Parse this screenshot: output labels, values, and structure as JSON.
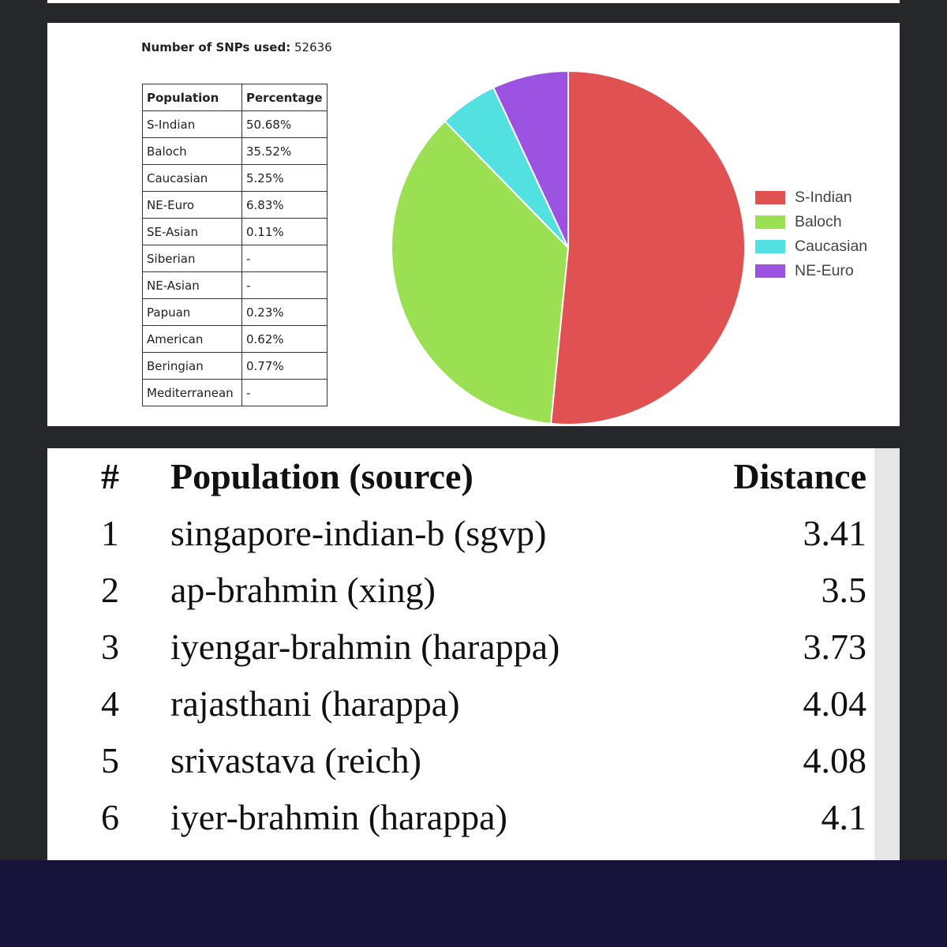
{
  "snp": {
    "label": "Number of SNPs used:",
    "value": "52636"
  },
  "table": {
    "headers": [
      "Population",
      "Percentage"
    ],
    "rows": [
      {
        "population": "S-Indian",
        "percentage": "50.68%"
      },
      {
        "population": "Baloch",
        "percentage": "35.52%"
      },
      {
        "population": "Caucasian",
        "percentage": "5.25%"
      },
      {
        "population": "NE-Euro",
        "percentage": "6.83%"
      },
      {
        "population": "SE-Asian",
        "percentage": "0.11%"
      },
      {
        "population": "Siberian",
        "percentage": "-"
      },
      {
        "population": "NE-Asian",
        "percentage": "-"
      },
      {
        "population": "Papuan",
        "percentage": "0.23%"
      },
      {
        "population": "American",
        "percentage": "0.62%"
      },
      {
        "population": "Beringian",
        "percentage": "0.77%"
      },
      {
        "population": "Mediterranean",
        "percentage": "-"
      }
    ]
  },
  "chart_data": {
    "type": "pie",
    "categories": [
      "S-Indian",
      "Baloch",
      "Caucasian",
      "NE-Euro"
    ],
    "values": [
      50.68,
      35.52,
      5.25,
      6.83
    ],
    "colors": [
      "#e05252",
      "#9be052",
      "#52e0e0",
      "#9b52e0"
    ],
    "legend_position": "right"
  },
  "distance_table": {
    "headers": {
      "num": "#",
      "population": "Population (source)",
      "distance": "Distance"
    },
    "rows": [
      {
        "num": "1",
        "population": "singapore-indian-b (sgvp)",
        "distance": "3.41"
      },
      {
        "num": "2",
        "population": "ap-brahmin (xing)",
        "distance": "3.5"
      },
      {
        "num": "3",
        "population": "iyengar-brahmin (harappa)",
        "distance": "3.73"
      },
      {
        "num": "4",
        "population": "rajasthani (harappa)",
        "distance": "4.04"
      },
      {
        "num": "5",
        "population": "srivastava (reich)",
        "distance": "4.08"
      },
      {
        "num": "6",
        "population": "iyer-brahmin (harappa)",
        "distance": "4.1"
      }
    ]
  }
}
